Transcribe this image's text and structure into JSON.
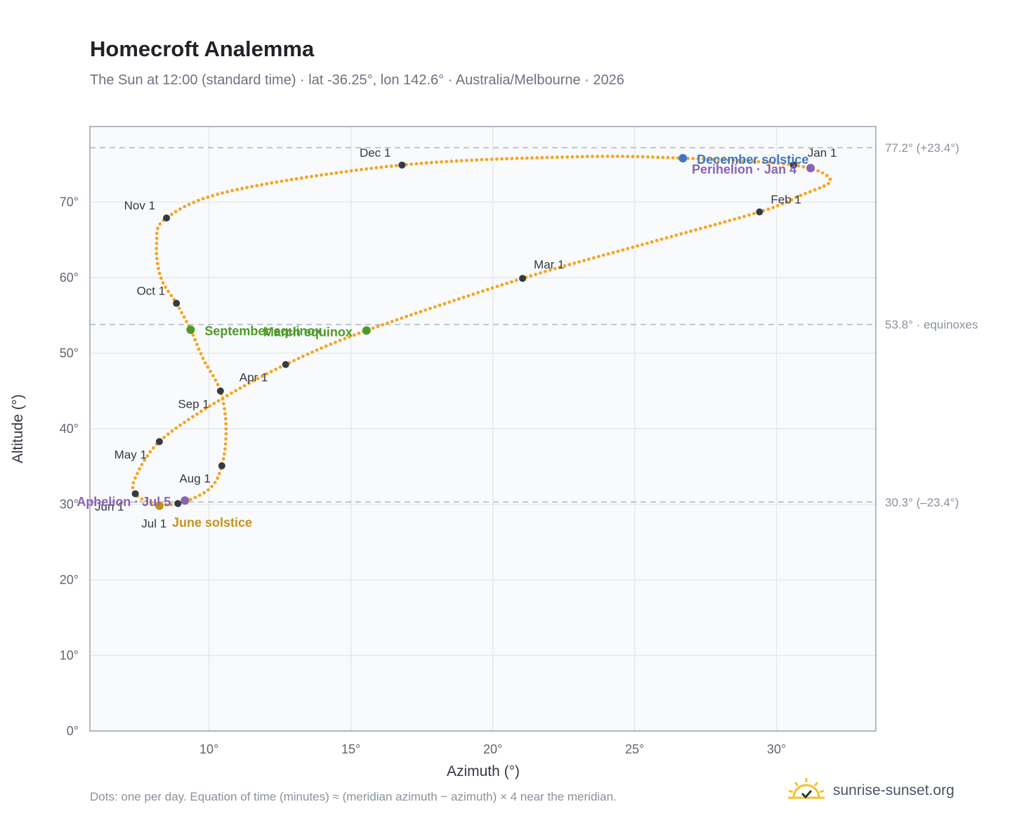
{
  "title": "Homecroft Analemma",
  "subtitle": "The Sun at 12:00 (standard time) · lat -36.25°, lon 142.6° · Australia/Melbourne · 2026",
  "footnote": "Dots: one per day. Equation of time (minutes) ≈ (meridian azimuth − azimuth) × 4 near the meridian.",
  "brand": {
    "name": "sunrise-sunset.org",
    "icon": "sunrise-sun-icon"
  },
  "colors": {
    "curve": "#f5a623",
    "marker": "#353b45",
    "solstice_dec": "#3b78c0",
    "solstice_jun": "#c8921a",
    "equinox": "#4e9a28",
    "apsis": "#8b62b0",
    "ref_line": "#aab8c6",
    "grid": "#e5e8ee",
    "plot_bg": "#f8fafc",
    "frame": "#9aa3b1"
  },
  "chart_data": {
    "type": "scatter",
    "title": "Homecroft Analemma",
    "xlabel": "Azimuth (°)",
    "ylabel": "Altitude (°)",
    "xlim": [
      5.8,
      33.5
    ],
    "ylim": [
      0,
      80
    ],
    "xticks": [
      10,
      15,
      20,
      25,
      30
    ],
    "yticks": [
      0,
      10,
      20,
      30,
      40,
      50,
      60,
      70
    ],
    "tick_suffix": "°",
    "grid": true,
    "reference_lines": [
      {
        "y": 77.2,
        "label": "77.2° (+23.4°)"
      },
      {
        "y": 53.8,
        "label": "53.8° · equinoxes"
      },
      {
        "y": 30.3,
        "label": "30.3° (–23.4°)"
      }
    ],
    "monthly_markers": [
      {
        "label": "Jan 1",
        "x": 30.6,
        "y": 74.9
      },
      {
        "label": "Feb 1",
        "x": 29.4,
        "y": 68.7
      },
      {
        "label": "Mar 1",
        "x": 21.05,
        "y": 59.9
      },
      {
        "label": "Apr 1",
        "x": 12.7,
        "y": 48.5
      },
      {
        "label": "May 1",
        "x": 8.25,
        "y": 38.3
      },
      {
        "label": "Jun 1",
        "x": 7.4,
        "y": 31.4
      },
      {
        "label": "Jul 1",
        "x": 8.9,
        "y": 30.1
      },
      {
        "label": "Aug 1",
        "x": 10.45,
        "y": 35.1
      },
      {
        "label": "Sep 1",
        "x": 10.4,
        "y": 45.0
      },
      {
        "label": "Oct 1",
        "x": 8.85,
        "y": 56.6
      },
      {
        "label": "Nov 1",
        "x": 8.5,
        "y": 67.9
      },
      {
        "label": "Dec 1",
        "x": 16.8,
        "y": 74.9
      }
    ],
    "events": [
      {
        "label": "December solstice",
        "kind": "solstice_dec",
        "x": 26.7,
        "y": 75.8
      },
      {
        "label": "Perihelion · Jan 4",
        "kind": "apsis",
        "x": 31.2,
        "y": 74.5
      },
      {
        "label": "March equinox",
        "kind": "equinox",
        "x": 15.55,
        "y": 53.0
      },
      {
        "label": "September equinox",
        "kind": "equinox",
        "x": 9.35,
        "y": 53.1
      },
      {
        "label": "June solstice",
        "kind": "solstice_jun",
        "x": 8.25,
        "y": 29.8
      },
      {
        "label": "Aphelion · Jul 5",
        "kind": "apsis",
        "x": 9.15,
        "y": 30.5
      }
    ],
    "path_anchors": [
      {
        "x": 30.6,
        "y": 74.9
      },
      {
        "x": 31.9,
        "y": 72.9
      },
      {
        "x": 30.8,
        "y": 70.8
      },
      {
        "x": 29.4,
        "y": 68.7
      },
      {
        "x": 25.2,
        "y": 64.3
      },
      {
        "x": 21.05,
        "y": 59.9
      },
      {
        "x": 15.55,
        "y": 53.0
      },
      {
        "x": 12.7,
        "y": 48.5
      },
      {
        "x": 10.2,
        "y": 43.4
      },
      {
        "x": 8.25,
        "y": 38.3
      },
      {
        "x": 7.4,
        "y": 33.5
      },
      {
        "x": 7.4,
        "y": 31.4
      },
      {
        "x": 8.0,
        "y": 30.2
      },
      {
        "x": 8.9,
        "y": 30.1
      },
      {
        "x": 10.0,
        "y": 32.0
      },
      {
        "x": 10.45,
        "y": 35.1
      },
      {
        "x": 10.6,
        "y": 40.0
      },
      {
        "x": 10.4,
        "y": 45.0
      },
      {
        "x": 9.8,
        "y": 49.2
      },
      {
        "x": 9.35,
        "y": 53.1
      },
      {
        "x": 8.85,
        "y": 56.6
      },
      {
        "x": 8.3,
        "y": 60.0
      },
      {
        "x": 8.15,
        "y": 64.5
      },
      {
        "x": 8.5,
        "y": 67.9
      },
      {
        "x": 10.8,
        "y": 71.5
      },
      {
        "x": 16.8,
        "y": 74.9
      },
      {
        "x": 23.0,
        "y": 76.0
      },
      {
        "x": 26.7,
        "y": 75.8
      },
      {
        "x": 30.6,
        "y": 74.9
      }
    ],
    "daily_points": 365
  }
}
